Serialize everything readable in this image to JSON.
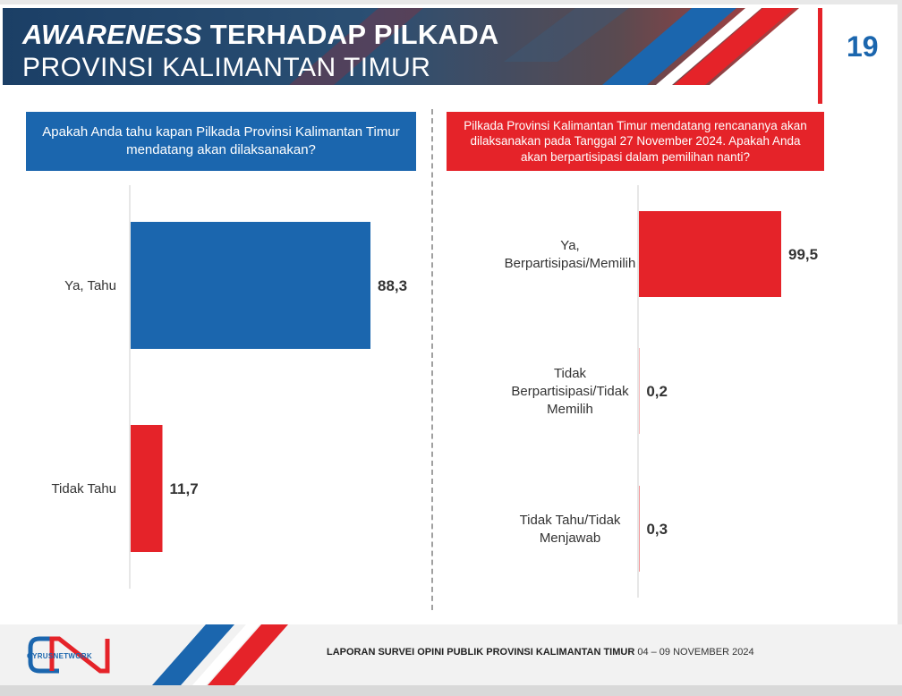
{
  "header": {
    "title_italic": "AWARENESS",
    "title_rest": " TERHADAP PILKADA",
    "subtitle": "PROVINSI KALIMANTAN TIMUR",
    "page_number": "19"
  },
  "colors": {
    "blue": "#1b66ae",
    "red": "#e52329"
  },
  "chart_data": [
    {
      "type": "bar",
      "title": "Apakah Anda tahu kapan Pilkada Provinsi Kalimantan Timur mendatang akan dilaksanakan?",
      "categories": [
        "Ya, Tahu",
        "Tidak Tahu"
      ],
      "values": [
        88.3,
        11.7
      ],
      "value_labels": [
        "88,3",
        "11,7"
      ],
      "colors": [
        "#1b66ae",
        "#e52329"
      ],
      "orientation": "horizontal",
      "xlim": [
        0,
        100
      ]
    },
    {
      "type": "bar",
      "title": "Pilkada Provinsi Kalimantan Timur mendatang rencananya akan dilaksanakan pada Tanggal 27 November 2024. Apakah Anda akan berpartisipasi dalam pemilihan nanti?",
      "categories": [
        "Ya, Berpartisipasi/Memilih",
        "Tidak Berpartisipasi/Tidak Memilih",
        "Tidak Tahu/Tidak Menjawab"
      ],
      "category_lines": [
        [
          "Ya,",
          "Berpartisipasi/Memilih"
        ],
        [
          "Tidak",
          "Berpartisipasi/Tidak",
          "Memilih"
        ],
        [
          "Tidak Tahu/Tidak",
          "Menjawab"
        ]
      ],
      "values": [
        99.5,
        0.2,
        0.3
      ],
      "value_labels": [
        "99,5",
        "0,2",
        "0,3"
      ],
      "colors": [
        "#e52329",
        "#e52329",
        "#e52329"
      ],
      "orientation": "horizontal",
      "xlim": [
        0,
        100
      ]
    }
  ],
  "footer": {
    "logo_text": "CYRUSNETWORK",
    "report_bold": "LAPORAN SURVEI OPINI PUBLIK PROVINSI KALIMANTAN TIMUR",
    "report_dates": " 04 – 09 NOVEMBER 2024"
  }
}
